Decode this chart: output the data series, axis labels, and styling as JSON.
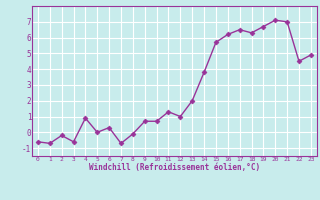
{
  "x": [
    0,
    1,
    2,
    3,
    4,
    5,
    6,
    7,
    8,
    9,
    10,
    11,
    12,
    13,
    14,
    15,
    16,
    17,
    18,
    19,
    20,
    21,
    22,
    23
  ],
  "y": [
    -0.6,
    -0.7,
    -0.2,
    -0.6,
    0.9,
    0.0,
    0.3,
    -0.7,
    -0.1,
    0.7,
    0.7,
    1.3,
    1.0,
    2.0,
    3.8,
    5.7,
    6.2,
    6.5,
    6.3,
    6.7,
    7.1,
    7.0,
    4.5,
    4.9
  ],
  "line_color": "#993399",
  "marker_color": "#993399",
  "bg_color": "#c8ecec",
  "grid_color": "#ffffff",
  "xlabel": "Windchill (Refroidissement éolien,°C)",
  "xlabel_color": "#993399",
  "tick_color": "#993399",
  "ylim": [
    -1.5,
    8.0
  ],
  "xlim": [
    -0.5,
    23.5
  ],
  "yticks": [
    -1,
    0,
    1,
    2,
    3,
    4,
    5,
    6,
    7
  ],
  "xticks": [
    0,
    1,
    2,
    3,
    4,
    5,
    6,
    7,
    8,
    9,
    10,
    11,
    12,
    13,
    14,
    15,
    16,
    17,
    18,
    19,
    20,
    21,
    22,
    23
  ]
}
